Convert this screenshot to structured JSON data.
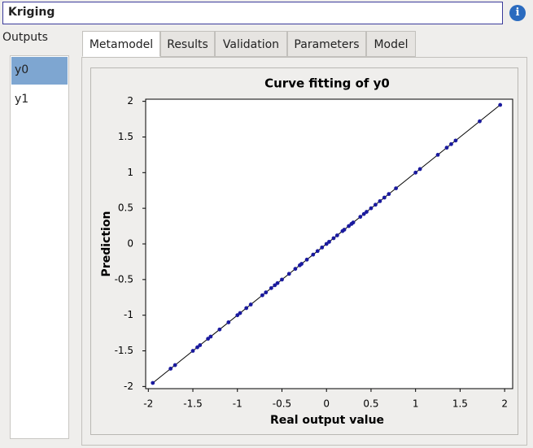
{
  "header": {
    "title": "Kriging"
  },
  "outputs": {
    "label": "Outputs",
    "items": [
      "y0",
      "y1"
    ]
  },
  "tabs": [
    "Metamodel",
    "Results",
    "Validation",
    "Parameters",
    "Model"
  ],
  "chart_data": {
    "type": "scatter",
    "title": "Curve fitting of y0",
    "x_label": "Real output value",
    "y_label": "Prediction",
    "x": [
      -1.95,
      -1.75,
      -1.7,
      -1.5,
      -1.45,
      -1.42,
      -1.33,
      -1.3,
      -1.2,
      -1.1,
      -1.0,
      -0.97,
      -0.9,
      -0.85,
      -0.72,
      -0.68,
      -0.62,
      -0.58,
      -0.55,
      -0.5,
      -0.42,
      -0.35,
      -0.3,
      -0.28,
      -0.22,
      -0.15,
      -0.1,
      -0.05,
      0.0,
      0.03,
      0.08,
      0.12,
      0.18,
      0.2,
      0.25,
      0.28,
      0.3,
      0.38,
      0.42,
      0.45,
      0.5,
      0.55,
      0.6,
      0.65,
      0.7,
      0.78,
      1.0,
      1.05,
      1.25,
      1.35,
      1.4,
      1.45,
      1.72,
      1.95
    ],
    "values": [
      -1.95,
      -1.75,
      -1.7,
      -1.5,
      -1.45,
      -1.42,
      -1.33,
      -1.3,
      -1.2,
      -1.1,
      -1.0,
      -0.97,
      -0.9,
      -0.85,
      -0.72,
      -0.68,
      -0.62,
      -0.58,
      -0.55,
      -0.5,
      -0.42,
      -0.35,
      -0.3,
      -0.28,
      -0.22,
      -0.15,
      -0.1,
      -0.05,
      0.0,
      0.03,
      0.08,
      0.12,
      0.18,
      0.2,
      0.25,
      0.28,
      0.3,
      0.38,
      0.42,
      0.45,
      0.5,
      0.55,
      0.6,
      0.65,
      0.7,
      0.78,
      1.0,
      1.05,
      1.25,
      1.35,
      1.4,
      1.45,
      1.72,
      1.95
    ],
    "color": "#1a1a9e",
    "xlim": [
      -2.03,
      2.09
    ],
    "ylim": [
      -2.03,
      2.03
    ],
    "xticks": [
      -2,
      -1.5,
      -1,
      -0.5,
      0,
      0.5,
      1,
      1.5,
      2
    ],
    "yticks": [
      -2,
      -1.5,
      -1,
      -0.5,
      0,
      0.5,
      1,
      1.5,
      2
    ]
  }
}
